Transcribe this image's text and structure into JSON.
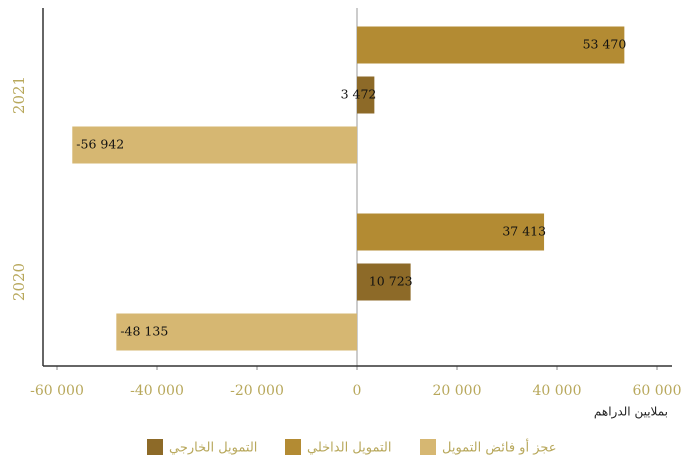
{
  "chart_data": {
    "type": "hbar",
    "categories": [
      "2021",
      "2020"
    ],
    "series": [
      {
        "name": "التمويل الداخلي",
        "color": "#b38b33",
        "values": [
          53470,
          37413
        ],
        "value_labels": [
          "53 470",
          "37 413"
        ]
      },
      {
        "name": "التمويل الخارجي",
        "color": "#8d6a28",
        "values": [
          3472,
          10723
        ],
        "value_labels": [
          "3 472",
          "10 723"
        ]
      },
      {
        "name": "عجز أو فائض التمويل",
        "color": "#d6b772",
        "values": [
          -56942,
          -48135
        ],
        "value_labels": [
          "-56 942",
          "-48 135"
        ]
      }
    ],
    "xlabel": "بملايين الدراهم",
    "xlim": [
      -63000,
      63000
    ],
    "xticks": [
      {
        "value": -60000,
        "label": "-60 000"
      },
      {
        "value": -40000,
        "label": "-40 000"
      },
      {
        "value": -20000,
        "label": "-20 000"
      },
      0,
      {
        "value": 20000,
        "label": "20 000"
      },
      {
        "value": 40000,
        "label": "40 000"
      },
      {
        "value": 60000,
        "label": "60 000"
      }
    ],
    "legend": "bottom"
  }
}
